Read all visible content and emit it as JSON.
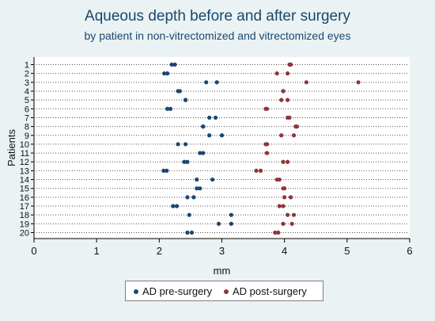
{
  "chart_data": {
    "type": "scatter",
    "title": "Aqueous depth before and after surgery",
    "subtitle": "by patient in non-vitrectomized and vitrectomized eyes",
    "xlabel": "mm",
    "ylabel": "Patients",
    "xlim": [
      0,
      6
    ],
    "x_ticks": [
      "0",
      "1",
      "2",
      "3",
      "4",
      "5",
      "6"
    ],
    "categories": [
      "1",
      "2",
      "3",
      "4",
      "5",
      "6",
      "7",
      "8",
      "9",
      "10",
      "11",
      "12",
      "13",
      "14",
      "15",
      "16",
      "17",
      "18",
      "19",
      "20"
    ],
    "grid": "dotted horizontal",
    "legend_position": "bottom",
    "series": [
      {
        "name": "AD pre-surgery",
        "color": "#1a476f",
        "points": [
          {
            "patient": "1",
            "x": 2.25
          },
          {
            "patient": "1",
            "x": 2.2
          },
          {
            "patient": "2",
            "x": 2.08
          },
          {
            "patient": "2",
            "x": 2.13
          },
          {
            "patient": "3",
            "x": 2.75
          },
          {
            "patient": "3",
            "x": 2.92
          },
          {
            "patient": "4",
            "x": 2.3
          },
          {
            "patient": "4",
            "x": 2.33
          },
          {
            "patient": "5",
            "x": 2.42
          },
          {
            "patient": "5",
            "x": 2.42
          },
          {
            "patient": "6",
            "x": 2.18
          },
          {
            "patient": "6",
            "x": 2.13
          },
          {
            "patient": "7",
            "x": 2.8
          },
          {
            "patient": "7",
            "x": 2.9
          },
          {
            "patient": "8",
            "x": 2.7
          },
          {
            "patient": "8",
            "x": 2.7
          },
          {
            "patient": "9",
            "x": 2.8
          },
          {
            "patient": "9",
            "x": 3.0
          },
          {
            "patient": "10",
            "x": 2.42
          },
          {
            "patient": "10",
            "x": 2.3
          },
          {
            "patient": "11",
            "x": 2.65
          },
          {
            "patient": "11",
            "x": 2.7
          },
          {
            "patient": "12",
            "x": 2.45
          },
          {
            "patient": "12",
            "x": 2.4
          },
          {
            "patient": "13",
            "x": 2.07
          },
          {
            "patient": "13",
            "x": 2.12
          },
          {
            "patient": "14",
            "x": 2.85
          },
          {
            "patient": "14",
            "x": 2.6
          },
          {
            "patient": "15",
            "x": 2.65
          },
          {
            "patient": "15",
            "x": 2.6
          },
          {
            "patient": "16",
            "x": 2.55
          },
          {
            "patient": "16",
            "x": 2.45
          },
          {
            "patient": "17",
            "x": 2.28
          },
          {
            "patient": "17",
            "x": 2.22
          },
          {
            "patient": "18",
            "x": 3.15
          },
          {
            "patient": "18",
            "x": 2.48
          },
          {
            "patient": "19",
            "x": 2.95
          },
          {
            "patient": "19",
            "x": 3.15
          },
          {
            "patient": "20",
            "x": 2.45
          },
          {
            "patient": "20",
            "x": 2.52
          }
        ]
      },
      {
        "name": "AD post-surgery",
        "color": "#90353b",
        "points": [
          {
            "patient": "1",
            "x": 4.1
          },
          {
            "patient": "1",
            "x": 4.08
          },
          {
            "patient": "2",
            "x": 3.88
          },
          {
            "patient": "2",
            "x": 4.05
          },
          {
            "patient": "3",
            "x": 4.35
          },
          {
            "patient": "3",
            "x": 5.18
          },
          {
            "patient": "4",
            "x": 3.98
          },
          {
            "patient": "4",
            "x": 3.98
          },
          {
            "patient": "5",
            "x": 3.95
          },
          {
            "patient": "5",
            "x": 4.05
          },
          {
            "patient": "6",
            "x": 3.72
          },
          {
            "patient": "6",
            "x": 3.7
          },
          {
            "patient": "7",
            "x": 4.05
          },
          {
            "patient": "7",
            "x": 4.08
          },
          {
            "patient": "8",
            "x": 4.18
          },
          {
            "patient": "8",
            "x": 4.2
          },
          {
            "patient": "9",
            "x": 3.95
          },
          {
            "patient": "9",
            "x": 4.15
          },
          {
            "patient": "10",
            "x": 3.7
          },
          {
            "patient": "10",
            "x": 3.72
          },
          {
            "patient": "11",
            "x": 3.72
          },
          {
            "patient": "11",
            "x": 3.72
          },
          {
            "patient": "12",
            "x": 4.05
          },
          {
            "patient": "12",
            "x": 3.98
          },
          {
            "patient": "13",
            "x": 3.55
          },
          {
            "patient": "13",
            "x": 3.62
          },
          {
            "patient": "14",
            "x": 3.88
          },
          {
            "patient": "14",
            "x": 3.92
          },
          {
            "patient": "15",
            "x": 4.0
          },
          {
            "patient": "15",
            "x": 3.98
          },
          {
            "patient": "16",
            "x": 4.1
          },
          {
            "patient": "16",
            "x": 4.0
          },
          {
            "patient": "17",
            "x": 3.98
          },
          {
            "patient": "17",
            "x": 3.92
          },
          {
            "patient": "18",
            "x": 4.15
          },
          {
            "patient": "18",
            "x": 4.05
          },
          {
            "patient": "19",
            "x": 3.98
          },
          {
            "patient": "19",
            "x": 4.12
          },
          {
            "patient": "20",
            "x": 3.85
          },
          {
            "patient": "20",
            "x": 3.9
          }
        ]
      }
    ]
  }
}
